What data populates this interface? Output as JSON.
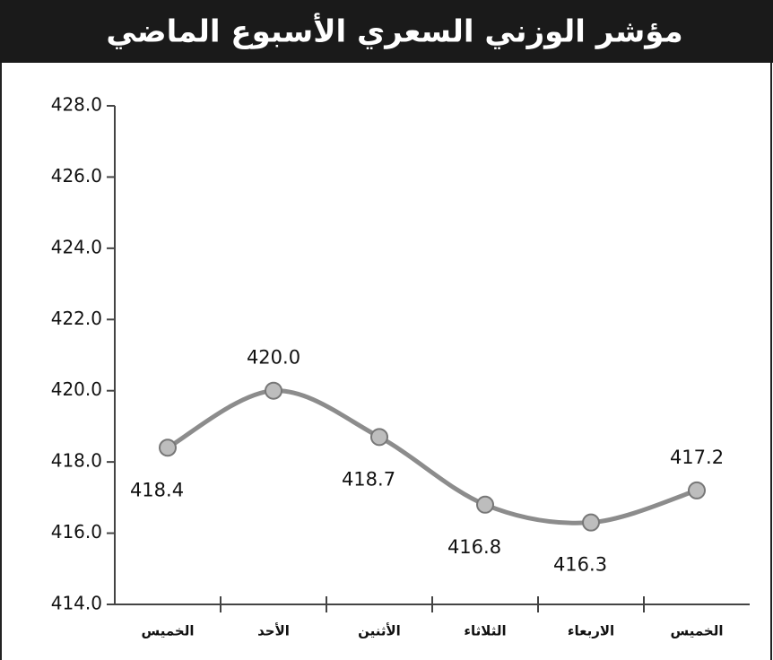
{
  "chart_data": {
    "type": "line",
    "title": "مؤشر الوزني السعري الأسبوع الماضي",
    "categories": [
      "الخميس",
      "الأحد",
      "الأثنين",
      "الثلاثاء",
      "الاربعاء",
      "الخميس"
    ],
    "series": [
      {
        "name": null,
        "color": "#8c8c8c",
        "values": [
          418.4,
          420.0,
          418.7,
          416.8,
          416.3,
          417.2
        ],
        "value_labels": [
          "418.4",
          "420.0",
          "418.7",
          "416.8",
          "416.3",
          "417.2"
        ]
      }
    ],
    "ylim": [
      414,
      428
    ],
    "yticks": [
      {
        "value": 414,
        "label": "414.0"
      },
      {
        "value": 416,
        "label": "416.0"
      },
      {
        "value": 418,
        "label": "418.0"
      },
      {
        "value": 420,
        "label": "420.0"
      },
      {
        "value": 422,
        "label": "422.0"
      },
      {
        "value": 424,
        "label": "424.0"
      },
      {
        "value": 426,
        "label": "426.0"
      },
      {
        "value": 428,
        "label": "428.0"
      }
    ],
    "grid": false
  }
}
